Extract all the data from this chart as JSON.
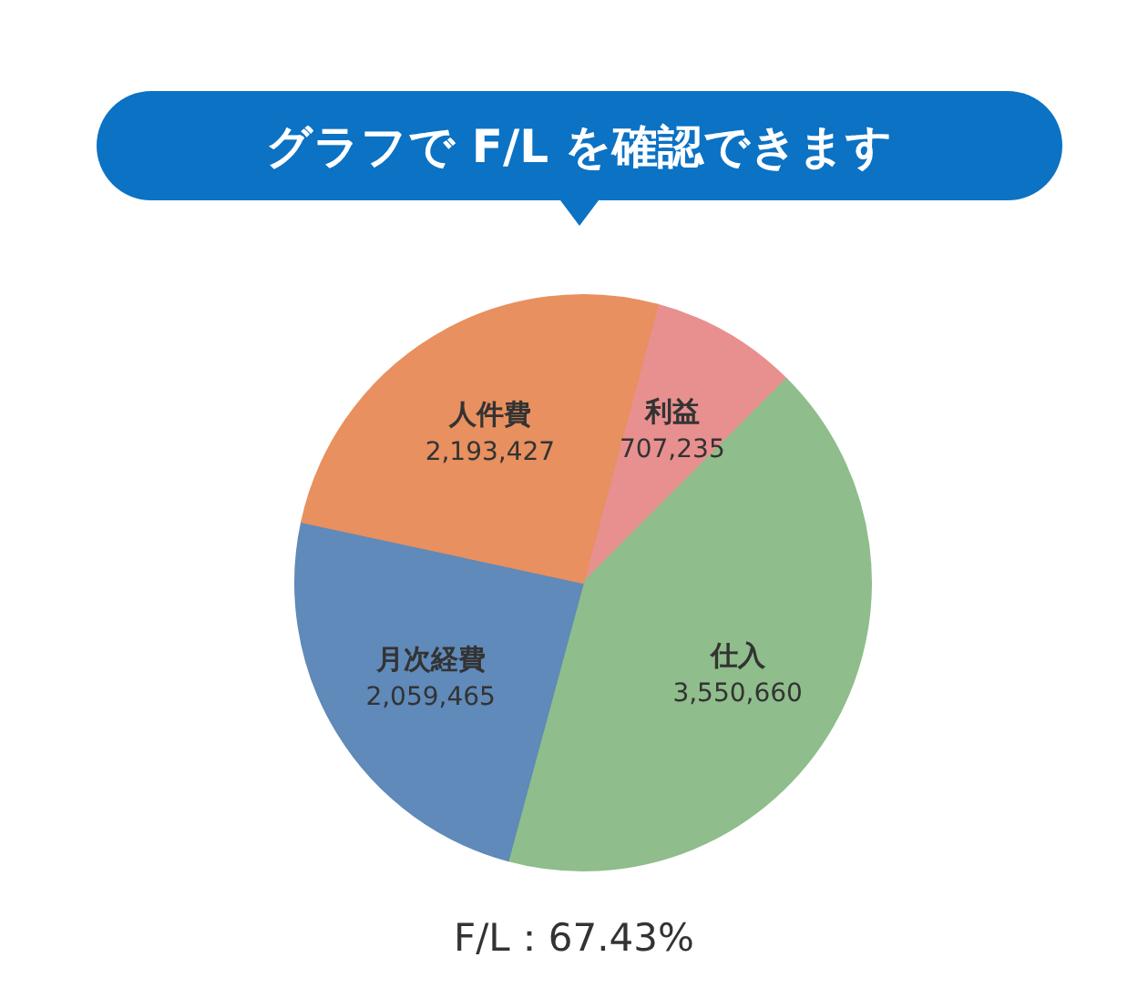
{
  "chart_data": {
    "type": "pie",
    "title": "グラフで F/L を確認できます",
    "categories": [
      "利益",
      "仕入",
      "月次経費",
      "人件費"
    ],
    "values": [
      707235,
      3550660,
      2059465,
      2193427
    ],
    "value_labels": [
      "707,235",
      "3,550,660",
      "2,059,465",
      "2,193,427"
    ],
    "colors": [
      "#e8908f",
      "#8fbd8b",
      "#5f8ab9",
      "#e8905f"
    ],
    "annotations": [
      "F/L：67.43%"
    ]
  }
}
